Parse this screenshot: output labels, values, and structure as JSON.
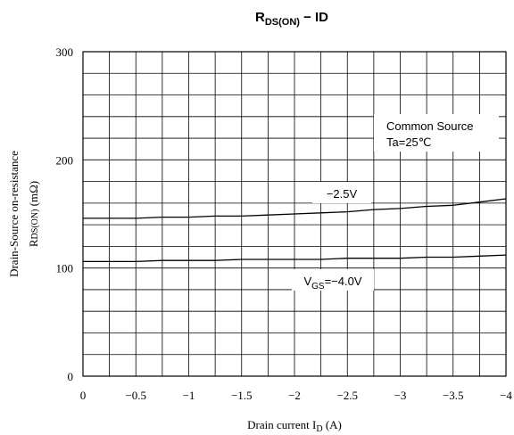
{
  "chart_data": {
    "type": "line",
    "title": {
      "main": "R",
      "sub": "DS(ON)",
      "rest": " − ID"
    },
    "xlabel": {
      "main": "Drain current I",
      "sub": "D",
      "rest": " (A)"
    },
    "ylabel": {
      "line1": "Drain-Source on-resistance",
      "line2": "R",
      "line2_sub": "DS(ON)",
      "line2_rest": " (mΩ)"
    },
    "xlim": [
      0,
      -4
    ],
    "ylim": [
      0,
      300
    ],
    "grid": true,
    "x_tick_labels": [
      "0",
      "−0.5",
      "−1",
      "−1.5",
      "−2",
      "−2.5",
      "−3",
      "−3.5",
      "−4"
    ],
    "x_ticks": [
      0,
      -0.5,
      -1,
      -1.5,
      -2,
      -2.5,
      -3,
      -3.5,
      -4
    ],
    "y_tick_labels": [
      "0",
      "100",
      "200",
      "300"
    ],
    "y_ticks": [
      0,
      100,
      200,
      300
    ],
    "x_minor_step": -0.25,
    "y_minor_step": 20,
    "series": [
      {
        "name": "−2.5V",
        "x": [
          0,
          -0.25,
          -0.5,
          -0.75,
          -1,
          -1.25,
          -1.5,
          -1.75,
          -2,
          -2.25,
          -2.5,
          -2.75,
          -3,
          -3.25,
          -3.5,
          -3.75,
          -4
        ],
        "y": [
          146,
          146,
          146,
          147,
          147,
          148,
          148,
          149,
          150,
          151,
          152,
          154,
          155,
          157,
          158,
          161,
          164
        ]
      },
      {
        "name": "V_GS=−4.0V",
        "x": [
          0,
          -0.25,
          -0.5,
          -0.75,
          -1,
          -1.25,
          -1.5,
          -1.75,
          -2,
          -2.25,
          -2.5,
          -2.75,
          -3,
          -3.25,
          -3.5,
          -3.75,
          -4
        ],
        "y": [
          106,
          106,
          106,
          107,
          107,
          107,
          108,
          108,
          108,
          108,
          109,
          109,
          109,
          110,
          110,
          111,
          112
        ]
      }
    ],
    "annotations": {
      "common_source": "Common Source",
      "ta": "Ta=25℃",
      "label_25": "−2.5V",
      "label_40_pre": "V",
      "label_40_sub": "GS",
      "label_40_post": "=−4.0V"
    }
  }
}
